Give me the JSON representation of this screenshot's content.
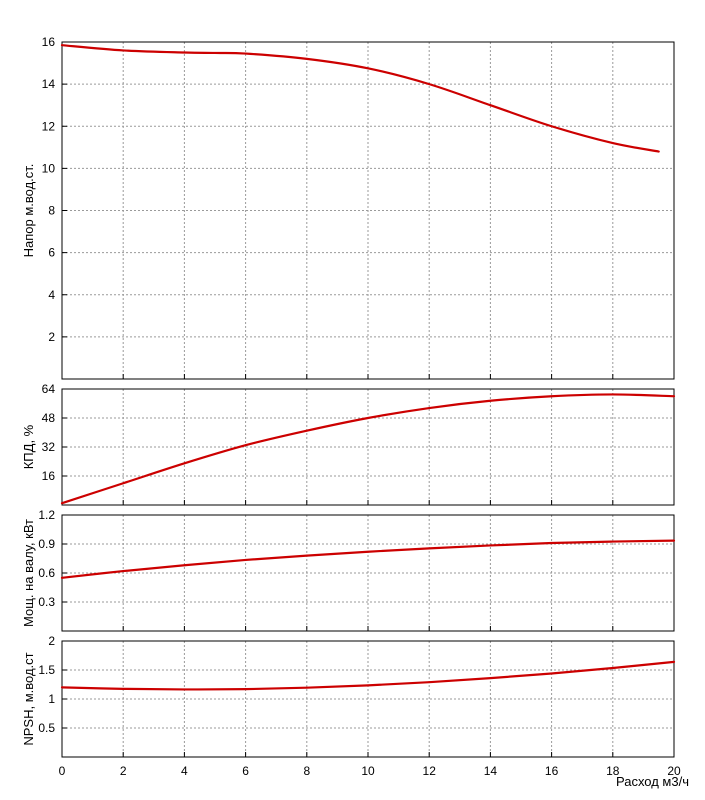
{
  "chart_data": [
    {
      "type": "line",
      "ylabel": "Напор м.вод.ст.",
      "xlim": [
        0,
        20
      ],
      "ylim": [
        0,
        16
      ],
      "yticks": [
        2,
        4,
        6,
        8,
        10,
        12,
        14,
        16
      ],
      "grid": true,
      "series": [
        {
          "color": "#cc0000",
          "x": [
            0,
            2,
            4,
            5,
            6,
            8,
            10,
            12,
            14,
            16,
            18,
            19.5
          ],
          "y": [
            15.85,
            15.6,
            15.5,
            15.48,
            15.45,
            15.2,
            14.75,
            14.0,
            13.0,
            12.0,
            11.2,
            10.8
          ]
        }
      ]
    },
    {
      "type": "line",
      "ylabel": "КПД, %",
      "xlim": [
        0,
        20
      ],
      "ylim": [
        0,
        64
      ],
      "yticks": [
        16,
        32,
        48,
        64
      ],
      "grid": true,
      "series": [
        {
          "color": "#cc0000",
          "x": [
            0,
            2,
            4,
            6,
            8,
            10,
            12,
            14,
            16,
            18,
            20
          ],
          "y": [
            1,
            12,
            23,
            33,
            41,
            48,
            53.5,
            57.5,
            60,
            61,
            60
          ]
        }
      ]
    },
    {
      "type": "line",
      "ylabel": "Мощ. на валу, кВт",
      "xlim": [
        0,
        20
      ],
      "ylim": [
        0,
        1.2
      ],
      "yticks": [
        0.3,
        0.6,
        0.9,
        1.2
      ],
      "grid": true,
      "series": [
        {
          "color": "#cc0000",
          "x": [
            0,
            2,
            4,
            6,
            8,
            10,
            12,
            14,
            16,
            18,
            20
          ],
          "y": [
            0.55,
            0.62,
            0.68,
            0.735,
            0.78,
            0.82,
            0.855,
            0.885,
            0.91,
            0.925,
            0.935
          ]
        }
      ]
    },
    {
      "type": "line",
      "ylabel": "NPSH, м.вод.ст",
      "xlabel": "Расход м3/ч",
      "xlim": [
        0,
        20
      ],
      "ylim": [
        0,
        2
      ],
      "yticks": [
        0.5,
        1,
        1.5,
        2
      ],
      "xticks": [
        0,
        2,
        4,
        6,
        8,
        10,
        12,
        14,
        16,
        18,
        20
      ],
      "grid": true,
      "series": [
        {
          "color": "#cc0000",
          "x": [
            0,
            2,
            4,
            6,
            8,
            10,
            12,
            14,
            16,
            18,
            20
          ],
          "y": [
            1.2,
            1.175,
            1.165,
            1.17,
            1.195,
            1.235,
            1.29,
            1.36,
            1.44,
            1.535,
            1.64
          ]
        }
      ]
    }
  ]
}
